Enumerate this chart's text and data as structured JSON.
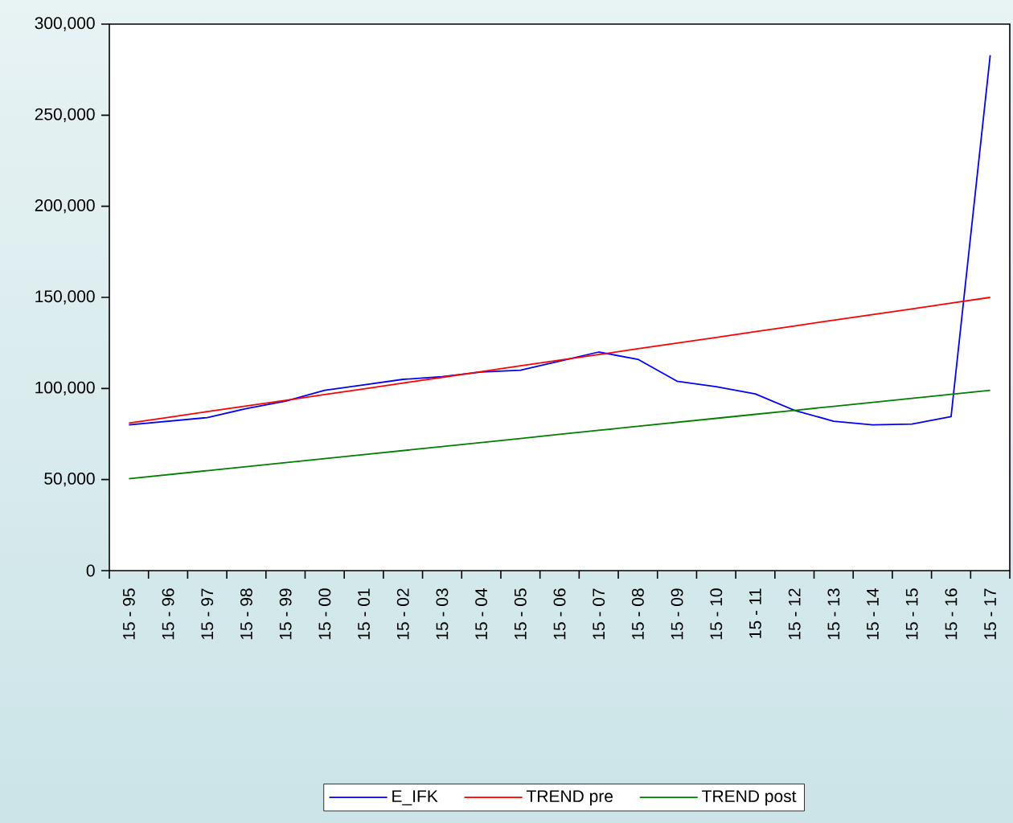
{
  "chart_data": {
    "type": "line",
    "categories": [
      "15 - 95",
      "15 - 96",
      "15 - 97",
      "15 - 98",
      "15 - 99",
      "15 - 00",
      "15 - 01",
      "15 - 02",
      "15 - 03",
      "15 - 04",
      "15 - 05",
      "15 - 06",
      "15 - 07",
      "15 - 08",
      "15 - 09",
      "15 - 10",
      "15 - 11",
      "15 - 12",
      "15 - 13",
      "15 - 14",
      "15 - 15",
      "15 - 16",
      "15 - 17"
    ],
    "series": [
      {
        "name": "E_IFK",
        "color": "#0000ff",
        "values": [
          80000,
          82000,
          84000,
          89000,
          93000,
          99000,
          102000,
          105000,
          106500,
          109000,
          110000,
          115000,
          120000,
          116000,
          104000,
          101000,
          97000,
          88000,
          82000,
          80000,
          80500,
          84500,
          283000
        ]
      },
      {
        "name": "TREND pre",
        "color": "#ff0000",
        "values": [
          81000,
          84100,
          87300,
          90400,
          93500,
          96700,
          99800,
          103000,
          106100,
          109200,
          112400,
          115500,
          118600,
          121800,
          124900,
          128000,
          131200,
          134300,
          137500,
          140600,
          143700,
          146900,
          150000
        ]
      },
      {
        "name": "TREND post",
        "color": "#008000",
        "values": [
          50500,
          52700,
          54900,
          57100,
          59300,
          61500,
          63700,
          65900,
          68100,
          70300,
          72500,
          74800,
          77000,
          79200,
          81400,
          83600,
          85800,
          88000,
          90200,
          92400,
          94600,
          96800,
          99000
        ]
      }
    ],
    "ylim": [
      0,
      300000
    ],
    "yticks": [
      0,
      {
        "value": 50000,
        "label": "50,000"
      },
      {
        "value": 100000,
        "label": "100,000"
      },
      {
        "value": 150000,
        "label": "150,000"
      },
      {
        "value": 200000,
        "label": "200,000"
      },
      {
        "value": 250000,
        "label": "250,000"
      },
      {
        "value": 300000,
        "label": "300,000"
      }
    ],
    "grid": false,
    "legend": "bottom",
    "marker": "none",
    "line_style": "solid"
  }
}
